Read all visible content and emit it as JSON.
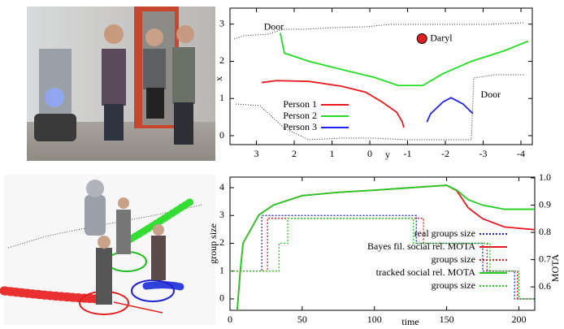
{
  "chart_data": [
    {
      "type": "line",
      "xlabel": "y",
      "ylabel": "x",
      "xlim": [
        3.7,
        -4.3
      ],
      "ylim": [
        -0.24,
        3.43
      ],
      "xticks": [
        3,
        2,
        1,
        0,
        -1,
        -2,
        -3,
        -4
      ],
      "yticks": [
        0,
        1,
        2,
        3
      ],
      "legend": "lower-left",
      "series": [
        {
          "name": "Person 1",
          "color": "#e8191c",
          "style": "solid",
          "x": [
            2.86,
            2.47,
            1.61,
            0.75,
            0.11,
            -0.32,
            -0.71,
            -0.86,
            -0.9
          ],
          "values": [
            1.43,
            1.48,
            1.46,
            1.33,
            1.17,
            0.91,
            0.63,
            0.37,
            0.22
          ]
        },
        {
          "name": "Person 2",
          "color": "#22dd22",
          "style": "solid",
          "x": [
            2.37,
            2.26,
            1.61,
            0.75,
            -0.11,
            -0.75,
            -1.4,
            -1.94,
            -2.69,
            -3.55,
            -4.19
          ],
          "values": [
            2.76,
            2.22,
            2.0,
            1.78,
            1.57,
            1.35,
            1.35,
            1.67,
            2.0,
            2.28,
            2.54
          ]
        },
        {
          "name": "Person 3",
          "color": "#2222ee",
          "style": "solid",
          "x": [
            -1.51,
            -1.61,
            -1.94,
            -2.15,
            -2.47,
            -2.73
          ],
          "values": [
            0.37,
            0.59,
            0.91,
            1.02,
            0.85,
            0.59
          ]
        }
      ],
      "annotations": [
        {
          "text": "Door",
          "x": 2.54,
          "y": 2.91
        },
        {
          "text": "Door",
          "x": -3.2,
          "y": 1.09
        },
        {
          "text": "Daryl",
          "x": -1.38,
          "y": 2.61,
          "marker": "#e02020"
        }
      ]
    },
    {
      "type": "line",
      "xlabel": "time",
      "ylabel": "group size",
      "y2label": "MOTA",
      "xlim": [
        0,
        211
      ],
      "ylim": [
        -0.41,
        4.38
      ],
      "y2lim": [
        0.514,
        1.003
      ],
      "xticks": [
        0,
        50,
        100,
        150,
        200
      ],
      "yticks": [
        0,
        1,
        2,
        3,
        4
      ],
      "y2ticks": [
        0.6,
        0.7,
        0.8,
        0.9,
        {
          "value": 1,
          "label": "1.0"
        }
      ],
      "legend": "right",
      "series": [
        {
          "name": "real groups size",
          "color": "#2222cc",
          "style": "dotted",
          "x": [
            0,
            22,
            22,
            129,
            129,
            175,
            175,
            197,
            197,
            211
          ],
          "values": [
            1,
            1,
            3,
            3,
            2,
            2,
            1,
            1,
            0,
            0
          ]
        },
        {
          "name": "Bayes fil. social rel. MOTA",
          "color": "#e8191c",
          "style": "solid",
          "axis": "y2",
          "x": [
            5,
            7,
            9,
            20,
            30,
            50,
            75,
            100,
            125,
            150,
            157,
            165,
            175,
            190,
            211
          ],
          "values": [
            0.514,
            0.65,
            0.76,
            0.864,
            0.9,
            0.935,
            0.947,
            0.955,
            0.964,
            0.973,
            0.953,
            0.89,
            0.85,
            0.82,
            0.81
          ]
        },
        {
          "name": "groups size",
          "color": "#e8191c",
          "style": "dotted",
          "x": [
            0,
            26,
            26,
            134,
            134,
            178,
            178,
            199,
            199,
            211
          ],
          "values": [
            1,
            1,
            2.9,
            2.9,
            2,
            2,
            1,
            1,
            0,
            0
          ]
        },
        {
          "name": "tracked social rel. MOTA",
          "color": "#22cc22",
          "style": "solid",
          "axis": "y2",
          "x": [
            5,
            7,
            9,
            20,
            30,
            50,
            75,
            100,
            125,
            150,
            157,
            165,
            175,
            190,
            211
          ],
          "values": [
            0.514,
            0.65,
            0.76,
            0.864,
            0.9,
            0.935,
            0.947,
            0.955,
            0.964,
            0.973,
            0.955,
            0.92,
            0.9,
            0.885,
            0.885
          ]
        },
        {
          "name": "groups size",
          "color": "#22cc22",
          "style": "dotted",
          "x": [
            0,
            34,
            34,
            40,
            40,
            127,
            127,
            180,
            180,
            200,
            200,
            211
          ],
          "values": [
            1,
            1,
            2,
            2,
            2.9,
            2.9,
            2,
            2,
            1,
            1,
            0,
            0
          ]
        }
      ]
    }
  ]
}
